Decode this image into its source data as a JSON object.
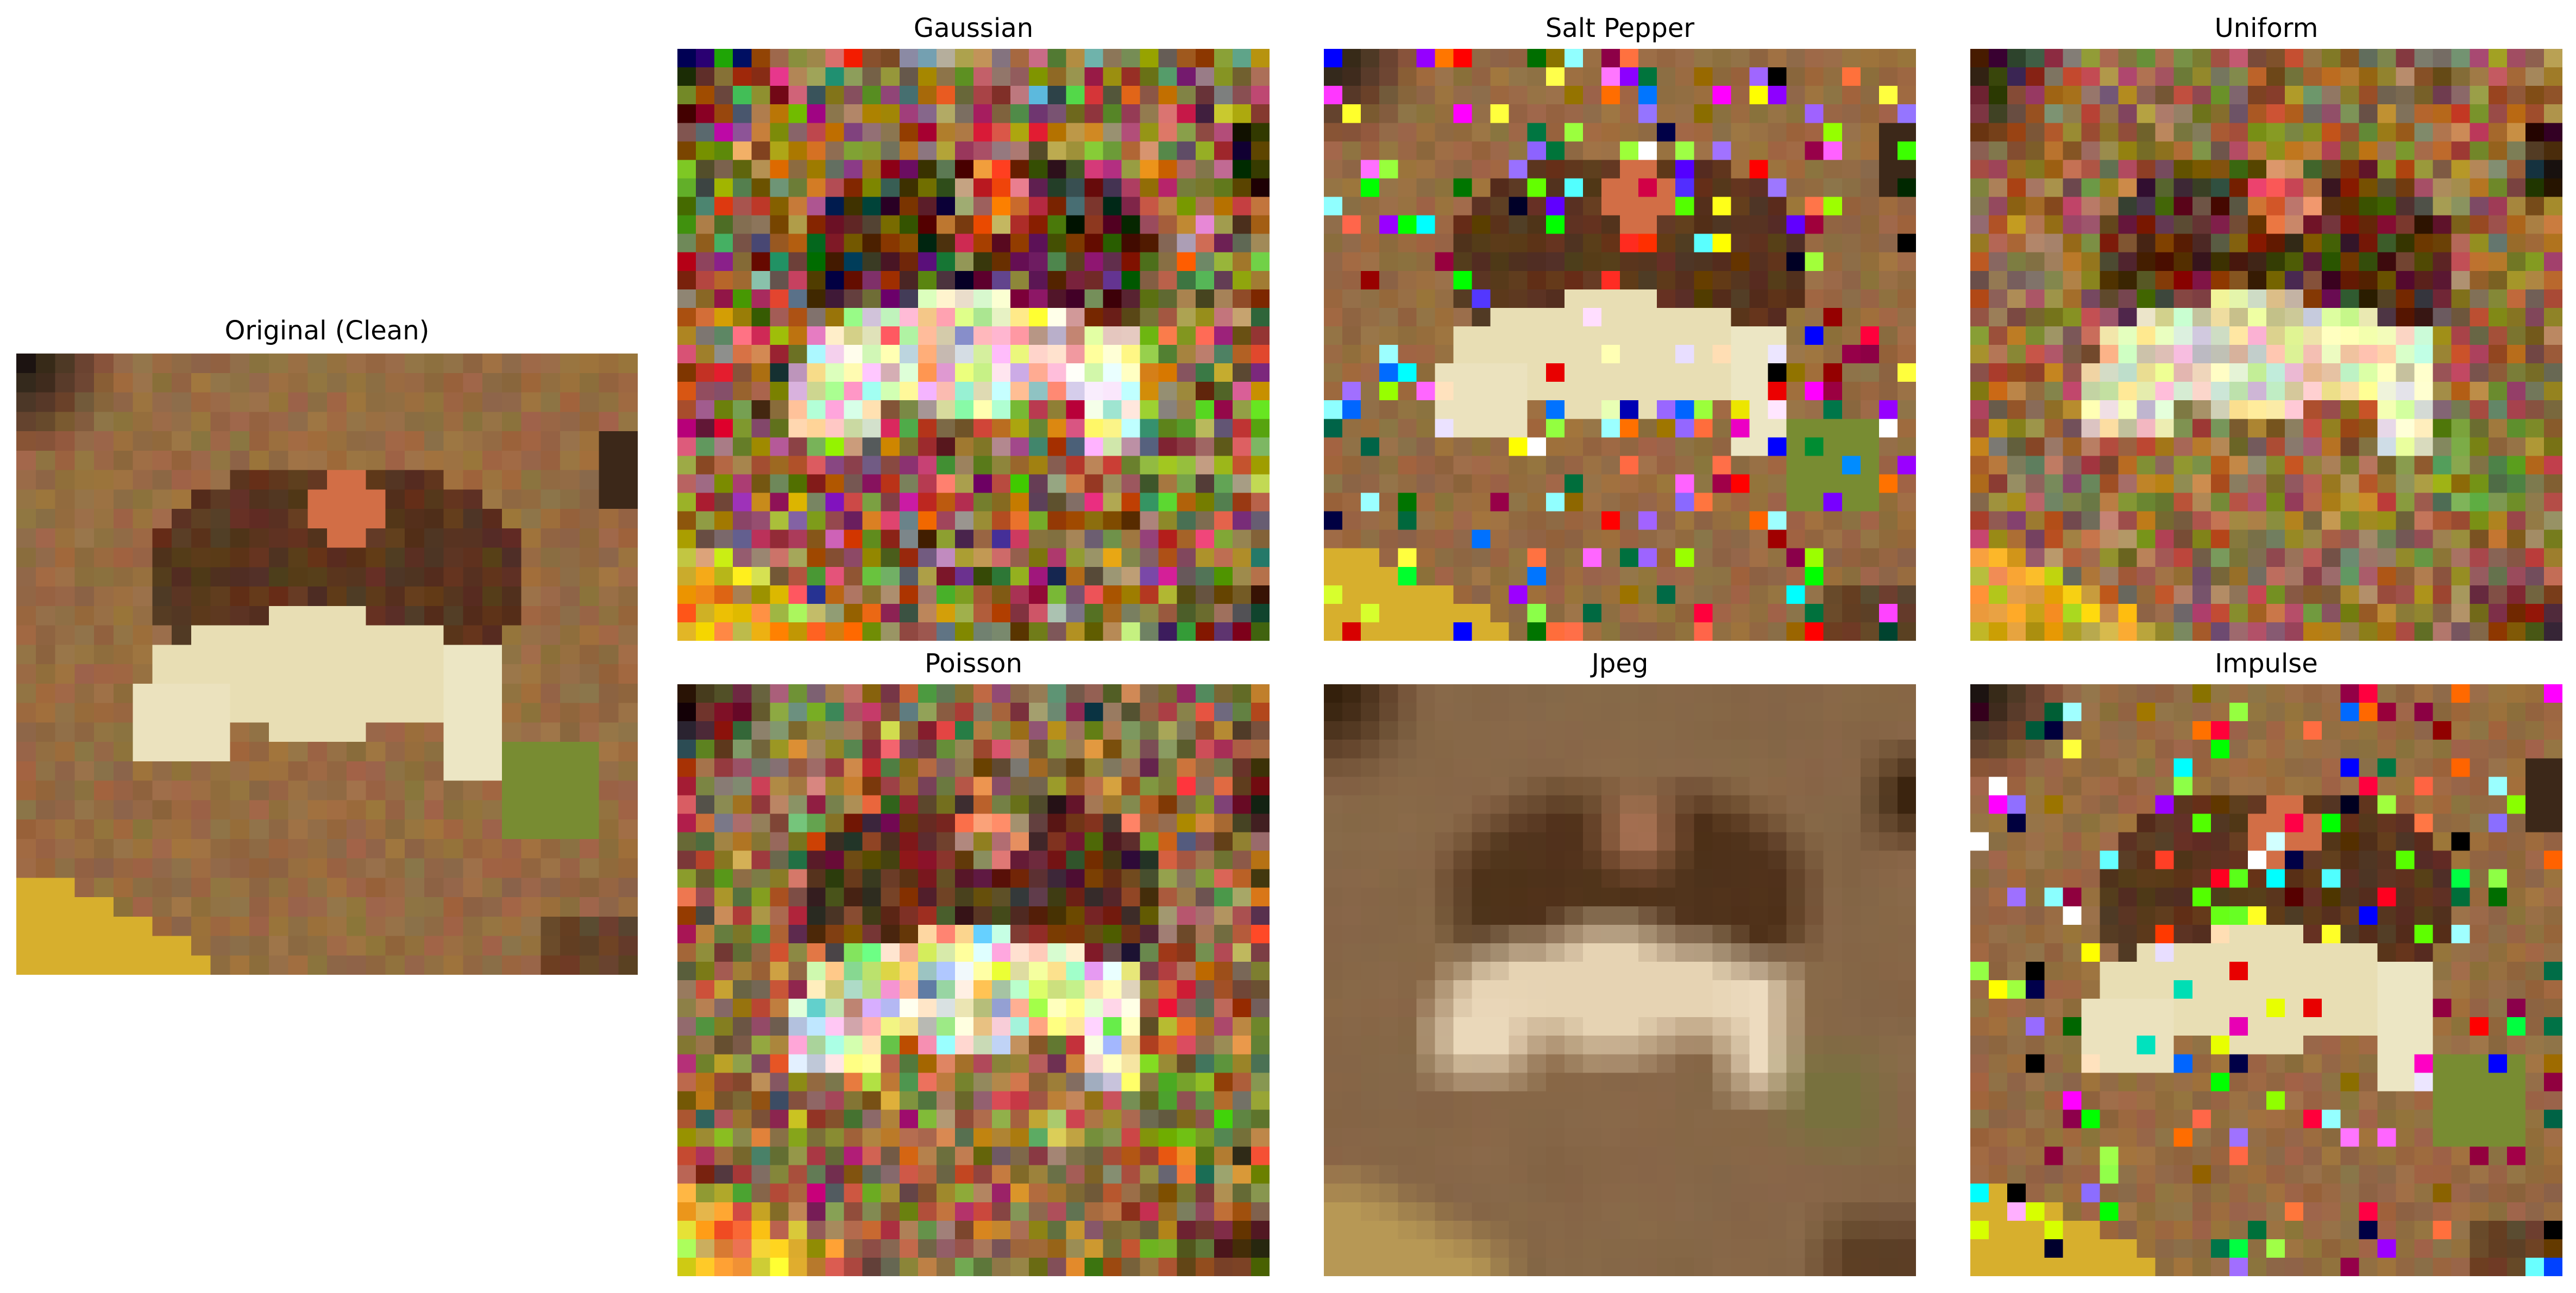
{
  "figure": {
    "panels": [
      {
        "id": "original",
        "title": "Original (Clean)",
        "noise": "none"
      },
      {
        "id": "gaussian",
        "title": "Gaussian",
        "noise": "gaussian"
      },
      {
        "id": "salt-pepper",
        "title": "Salt Pepper",
        "noise": "saltpepper"
      },
      {
        "id": "uniform",
        "title": "Uniform",
        "noise": "uniform"
      },
      {
        "id": "poisson",
        "title": "Poisson",
        "noise": "poisson"
      },
      {
        "id": "jpeg",
        "title": "Jpeg",
        "noise": "jpeg"
      },
      {
        "id": "impulse",
        "title": "Impulse",
        "noise": "impulse"
      }
    ]
  }
}
